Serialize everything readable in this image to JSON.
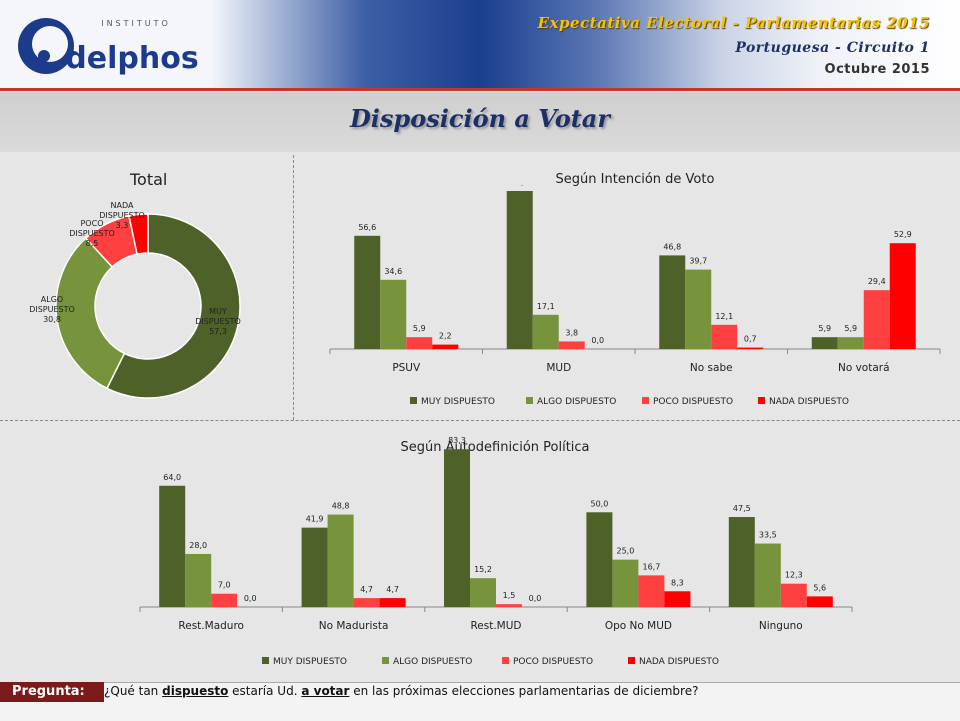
{
  "header": {
    "logo_top": "INSTITUTO",
    "logo_name": "delphos",
    "title": "Expectativa Electoral - Parlamentarias 2015",
    "subtitle": "Portuguesa - Circuito 1",
    "date": "Octubre 2015"
  },
  "page_title": "Disposición a Votar",
  "colors": {
    "muy": "#4e6128",
    "algo": "#77933c",
    "poco": "#ff4040",
    "nada": "#ff0000"
  },
  "chart_data": [
    {
      "id": "total",
      "type": "pie",
      "title": "Total",
      "categories": [
        "MUY DISPUESTO",
        "ALGO DISPUESTO",
        "POCO DISPUESTO",
        "NADA DISPUESTO"
      ],
      "values": [
        57.3,
        30.8,
        8.5,
        3.3
      ],
      "labels": [
        "MUY\nDISPUESTO\n57,3",
        "ALGO\nDISPUESTO\n30,8",
        "POCO\nDISPUESTO\n8,5",
        "NADA\nDISPUESTO\n3,3"
      ]
    },
    {
      "id": "intencion",
      "type": "bar",
      "title": "Según Intención de Voto",
      "categories": [
        "PSUV",
        "MUD",
        "No sabe",
        "No votará"
      ],
      "series": [
        {
          "name": "MUY DISPUESTO",
          "values": [
            56.6,
            79.0,
            46.8,
            5.9
          ]
        },
        {
          "name": "ALGO DISPUESTO",
          "values": [
            34.6,
            17.1,
            39.7,
            5.9
          ]
        },
        {
          "name": "POCO DISPUESTO",
          "values": [
            5.9,
            3.8,
            12.1,
            29.4
          ]
        },
        {
          "name": "NADA DISPUESTO",
          "values": [
            2.2,
            0.0,
            0.7,
            52.9
          ]
        }
      ],
      "data_labels": [
        [
          "56,6",
          "79,0",
          "46,8",
          "5,9"
        ],
        [
          "34,6",
          "17,1",
          "39,7",
          "5,9"
        ],
        [
          "5,9",
          "3,8",
          "12,1",
          "29,4"
        ],
        [
          "2,2",
          "0,0",
          "0,7",
          "52,9"
        ]
      ],
      "ylim": [
        0,
        80
      ],
      "legend": "bottom"
    },
    {
      "id": "autodefinicion",
      "type": "bar",
      "title": "Según Autodefinición Política",
      "categories": [
        "Rest.Maduro",
        "No Madurista",
        "Rest.MUD",
        "Opo No MUD",
        "Ninguno"
      ],
      "series": [
        {
          "name": "MUY DISPUESTO",
          "values": [
            64.0,
            41.9,
            83.3,
            50.0,
            47.5
          ]
        },
        {
          "name": "ALGO DISPUESTO",
          "values": [
            28.0,
            48.8,
            15.2,
            25.0,
            33.5
          ]
        },
        {
          "name": "POCO DISPUESTO",
          "values": [
            7.0,
            4.7,
            1.5,
            16.7,
            12.3
          ]
        },
        {
          "name": "NADA DISPUESTO",
          "values": [
            0.0,
            4.7,
            0.0,
            8.3,
            5.6
          ]
        }
      ],
      "data_labels": [
        [
          "64,0",
          "41,9",
          "83,3",
          "50,0",
          "47,5"
        ],
        [
          "28,0",
          "48,8",
          "15,2",
          "25,0",
          "33,5"
        ],
        [
          "7,0",
          "4,7",
          "1,5",
          "16,7",
          "12,3"
        ],
        [
          "0,0",
          "4,7",
          "0,0",
          "8,3",
          "5,6"
        ]
      ],
      "ylim": [
        0,
        85
      ],
      "legend": "bottom"
    }
  ],
  "footer": {
    "label": "Pregunta:",
    "q1": "¿Qué tan ",
    "q2": "dispuesto",
    "q3": " estaría Ud. ",
    "q4": "a votar",
    "q5": " en las próximas elecciones parlamentarias de diciembre?"
  }
}
